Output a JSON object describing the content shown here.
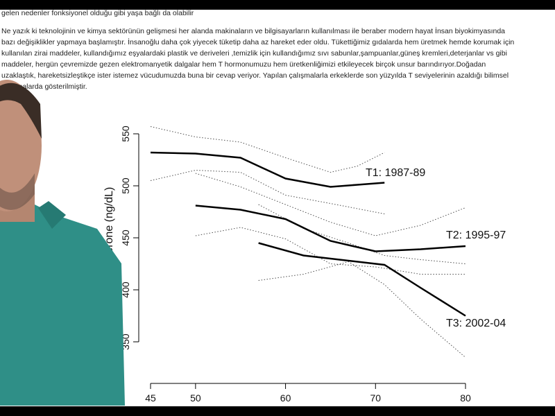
{
  "document": {
    "lines": [
      "gelen nedenler fonksiyonel olduğu gibi yaşa bağlı da olabilir",
      "Ne yazık ki teknolojinin ve kimya sektörünün  gelişmesi  her alanda makinaların ve bilgisayarların kullanılması ile beraber modern hayat  İnsan biyokimyasında",
      "bazı değişiklikler yapmaya başlamıştır. İnsanoğlu daha çok yiyecek tüketip daha az hareket eder oldu. Tükettiğimiz gıdalarda hem üretmek hemde korumak için",
      "kullanılan zirai maddeler, kullandığımız eşyalardaki plastik ve deriveleri ,temizlik için kullandığımız sıvı sabunlar,şampuanlar,güneş kremleri,deterjanlar vs gibi",
      "maddeler, hergün çevremizde gezen elektromanyetik dalgalar hem T hormonumuzu hem üretkenliğimizi etkileyecek  birçok unsur barındırıyor.Doğadan",
      "uzaklaştık, hareketsizleştikçe ister istemez vücudumuzda buna bir cevap veriyor. Yapılan çalışmalarla  erkeklerde son yüzyılda  T seviyelerinin  azaldığı bilimsel",
      "çalışmalarda gösterilmiştir."
    ]
  },
  "chart_data": {
    "type": "line",
    "y_label": "Testosterone (ng/dL)",
    "xlim": [
      45,
      80
    ],
    "xticks": [
      45,
      50,
      60,
      70,
      80
    ],
    "ylim": [
      350,
      550
    ],
    "yticks": [
      350,
      400,
      450,
      500,
      550
    ],
    "color": "#000000",
    "series": [
      {
        "name": "T1: 1987-89",
        "x": [
          45,
          50,
          55,
          60,
          65,
          68,
          71
        ],
        "values": [
          532,
          531,
          527,
          507,
          499,
          501,
          503
        ],
        "upper": [
          557,
          547,
          542,
          527,
          513,
          519,
          532
        ],
        "lower": [
          505,
          515,
          513,
          491,
          483,
          478,
          473
        ]
      },
      {
        "name": "T2: 1995-97",
        "x": [
          50,
          55,
          60,
          65,
          70,
          75,
          80
        ],
        "values": [
          481,
          477,
          468,
          447,
          437,
          439,
          442
        ],
        "upper": [
          512,
          499,
          482,
          465,
          452,
          462,
          479
        ],
        "lower": [
          452,
          460,
          449,
          425,
          422,
          415,
          415
        ]
      },
      {
        "name": "T3: 2002-04",
        "x": [
          57,
          62,
          67,
          71,
          75,
          80
        ],
        "values": [
          445,
          433,
          428,
          424,
          402,
          375
        ],
        "upper": [
          482,
          459,
          445,
          433,
          429,
          425
        ],
        "lower": [
          409,
          415,
          427,
          405,
          372,
          335
        ]
      }
    ]
  }
}
